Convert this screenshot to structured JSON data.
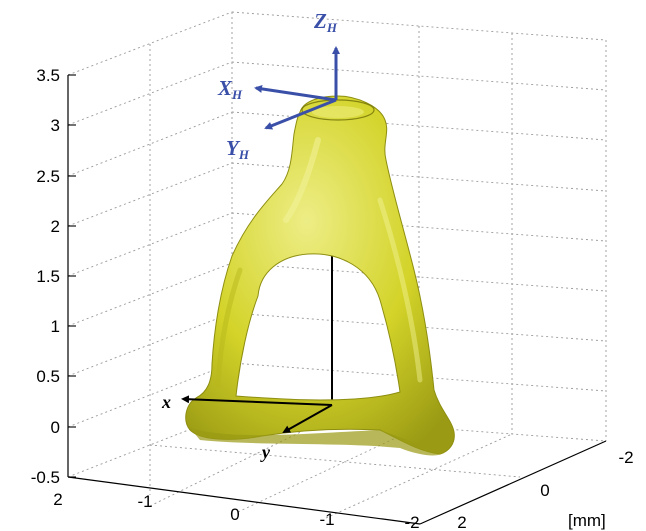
{
  "colors": {
    "bone": "#d3d329",
    "bone_dark": "#8e8e10",
    "bone_light": "#ecec7a",
    "frame_head": "#3a4fa8",
    "frame_base": "#000000"
  },
  "z_axis": {
    "ticks": [
      "3.5",
      "3",
      "2.5",
      "2",
      "1.5",
      "1",
      "0.5",
      "0",
      "-0.5"
    ]
  },
  "x_axis": {
    "ticks": [
      "2",
      "-1",
      "0",
      "-1",
      "-2"
    ]
  },
  "y_axis": {
    "ticks": [
      "-2",
      "0",
      "2"
    ],
    "unit": "[mm]"
  },
  "head_frame": {
    "z": {
      "main": "Z",
      "sub": "H"
    },
    "x": {
      "main": "X",
      "sub": "H"
    },
    "y": {
      "main": "Y",
      "sub": "H"
    }
  },
  "base_frame": {
    "x": "x",
    "y": "y"
  }
}
